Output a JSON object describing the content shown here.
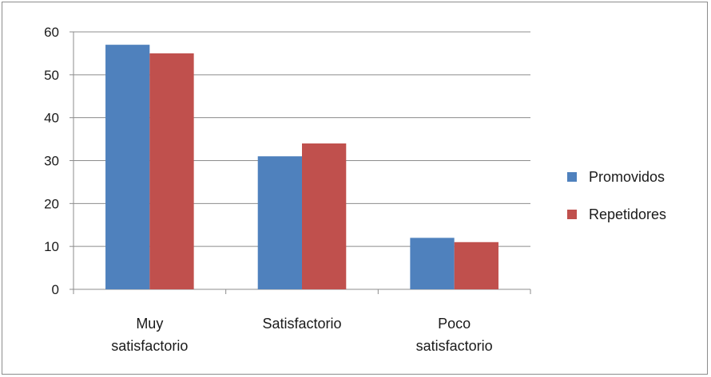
{
  "chart_data": {
    "type": "bar",
    "categories": [
      [
        "Muy",
        "satisfactorio"
      ],
      [
        "Satisfactorio"
      ],
      [
        "Poco",
        "satisfactorio"
      ]
    ],
    "series": [
      {
        "name": "Promovidos",
        "values": [
          57,
          31,
          12
        ],
        "color": "#4f81bd"
      },
      {
        "name": "Repetidores",
        "values": [
          55,
          34,
          11
        ],
        "color": "#c0504d"
      }
    ],
    "yticks": [
      0,
      10,
      20,
      30,
      40,
      50,
      60
    ],
    "ylim": [
      0,
      60
    ],
    "grid": true,
    "legend": "right"
  }
}
